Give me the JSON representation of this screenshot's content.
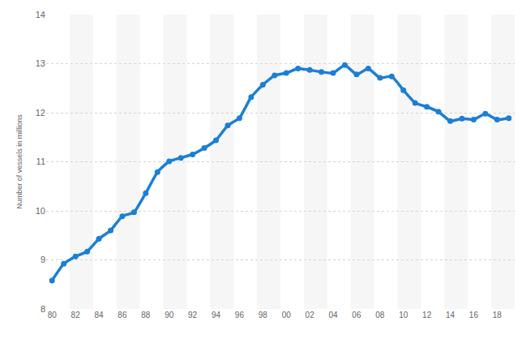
{
  "chart_data": {
    "type": "line",
    "y_label": "Number of vessels in millions",
    "categories": [
      "80",
      null,
      "82",
      null,
      "84",
      null,
      "86",
      null,
      "88",
      null,
      "90",
      null,
      "92",
      null,
      "94",
      null,
      "96",
      null,
      "98",
      null,
      "00",
      null,
      "02",
      null,
      "04",
      null,
      "06",
      null,
      "08",
      null,
      "10",
      null,
      "12",
      null,
      "14",
      null,
      "16",
      null,
      "18",
      null
    ],
    "values": [
      8.58,
      8.92,
      9.07,
      9.17,
      9.43,
      9.6,
      9.89,
      9.97,
      10.36,
      10.79,
      11.01,
      11.08,
      11.15,
      11.28,
      11.44,
      11.74,
      11.89,
      12.32,
      12.57,
      12.76,
      12.81,
      12.9,
      12.87,
      12.83,
      12.81,
      12.97,
      12.78,
      12.9,
      12.71,
      12.74,
      12.46,
      12.2,
      12.12,
      12.02,
      11.83,
      11.88,
      11.86,
      11.98,
      11.86,
      11.89
    ],
    "color": "#1a7fd6",
    "ylim": [
      8,
      14
    ],
    "yticks": [
      8,
      9,
      10,
      11,
      12,
      13,
      14
    ],
    "grid": true,
    "marker": "circle",
    "line_style": "solid"
  }
}
